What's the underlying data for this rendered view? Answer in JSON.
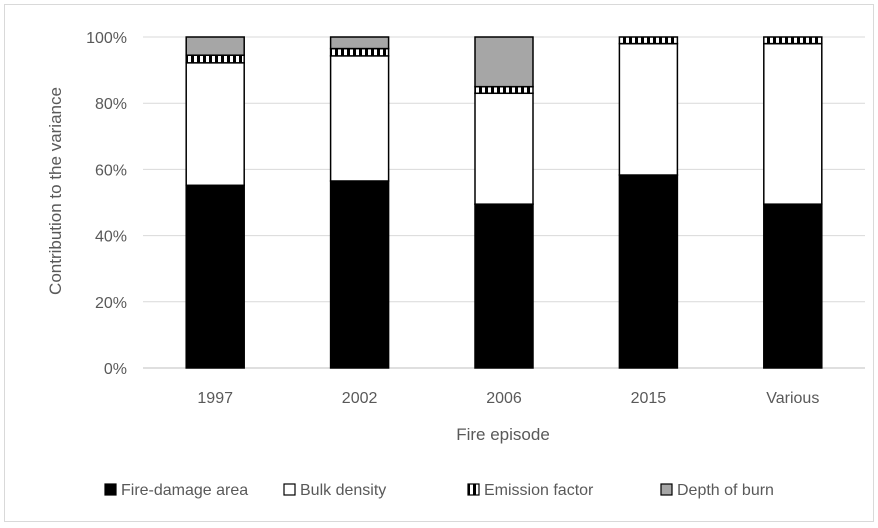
{
  "chart_data": {
    "type": "bar",
    "stacked": true,
    "percent_stacked": true,
    "categories": [
      "1997",
      "2002",
      "2006",
      "2015",
      "Various"
    ],
    "series": [
      {
        "name": "Fire-damage area",
        "values": [
          55.2,
          56.5,
          49.5,
          58.3,
          49.5
        ],
        "fill": "#000000",
        "pattern": "solid"
      },
      {
        "name": "Bulk density",
        "values": [
          37.0,
          37.8,
          33.5,
          39.7,
          48.5
        ],
        "fill": "#ffffff",
        "pattern": "solid"
      },
      {
        "name": "Emission factor",
        "values": [
          2.3,
          2.2,
          2.0,
          2.0,
          2.0
        ],
        "fill": "#000000",
        "pattern": "vertical-stripes"
      },
      {
        "name": "Depth of burn",
        "values": [
          5.5,
          3.5,
          15.0,
          0.0,
          0.0
        ],
        "fill": "#a6a6a6",
        "pattern": "solid"
      }
    ],
    "ylim": [
      0,
      100
    ],
    "yticks": [
      0,
      20,
      40,
      60,
      80,
      100
    ],
    "ytick_labels": [
      "0%",
      "20%",
      "40%",
      "60%",
      "80%",
      "100%"
    ],
    "ylabel": "Contribution to the variance",
    "xlabel": "Fire episode",
    "title": "",
    "grid": true,
    "legend_position": "bottom",
    "colors": {
      "axis_text": "#595959",
      "grid": "#d9d9d9",
      "bar_outline": "#000000"
    }
  }
}
